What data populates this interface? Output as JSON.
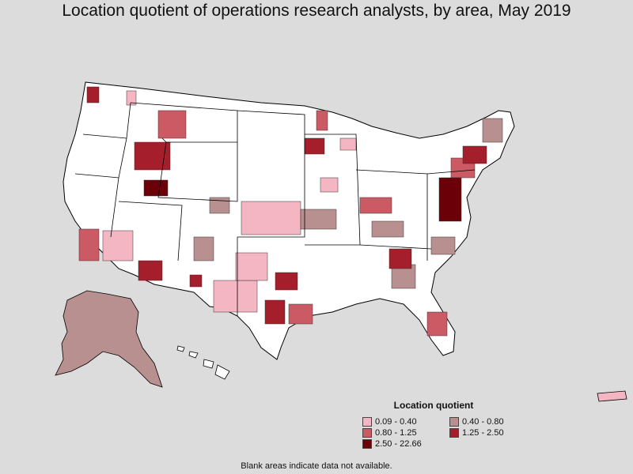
{
  "title": "Location quotient of operations research analysts, by area, May 2019",
  "legend": {
    "title": "Location quotient",
    "items": [
      {
        "label": "0.09 - 0.40",
        "color": "#f4b6c2"
      },
      {
        "label": "0.40 - 0.80",
        "color": "#b8908f"
      },
      {
        "label": "0.80 - 1.25",
        "color": "#cc5a64"
      },
      {
        "label": "1.25 - 2.50",
        "color": "#a51e2b"
      },
      {
        "label": "2.50 - 22.66",
        "color": "#6b0008"
      }
    ]
  },
  "note": "Blank areas indicate data not available."
}
